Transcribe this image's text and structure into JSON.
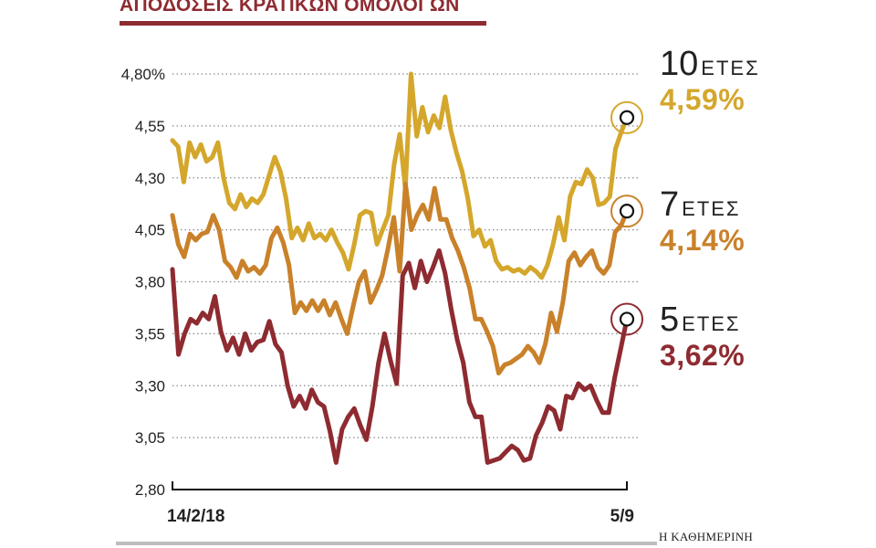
{
  "header": {
    "title": "ΑΠΟΔΟΣΕΙΣ ΚΡΑΤΙΚΩΝ ΟΜΟΛΟΓΩΝ"
  },
  "footer": {
    "source": "Η ΚΑΘΗΜΕΡΙΝΗ"
  },
  "legend": [
    {
      "num": "10",
      "word": "ΕΤΕΣ",
      "value": "4,59%",
      "color": "#d4a72c"
    },
    {
      "num": "7",
      "word": "ΕΤΕΣ",
      "value": "4,14%",
      "color": "#c9812a"
    },
    {
      "num": "5",
      "word": "ΕΤΕΣ",
      "value": "3,62%",
      "color": "#8e2b31"
    }
  ],
  "chart_data": {
    "type": "line",
    "title": "ΑΠΟΔΟΣΕΙΣ ΚΡΑΤΙΚΩΝ ΟΜΟΛΟΓΩΝ",
    "xlabel": "",
    "ylabel": "",
    "x_tick_labels": [
      "14/2/18",
      "5/9"
    ],
    "y_ticks": [
      2.8,
      3.05,
      3.3,
      3.55,
      3.8,
      4.05,
      4.3,
      4.55,
      4.8
    ],
    "y_tick_labels": [
      "2,80",
      "3,05",
      "3,30",
      "3,55",
      "3,80",
      "4,05",
      "4,30",
      "4,55",
      "4,80%"
    ],
    "ylim": [
      2.8,
      4.8
    ],
    "grid": "horizontal dotted",
    "series": [
      {
        "name": "10 ΕΤΕΣ",
        "color": "#d4a72c",
        "last": 4.59,
        "values": [
          4.48,
          4.45,
          4.28,
          4.47,
          4.4,
          4.46,
          4.38,
          4.4,
          4.47,
          4.3,
          4.18,
          4.15,
          4.22,
          4.16,
          4.2,
          4.18,
          4.22,
          4.31,
          4.4,
          4.33,
          4.2,
          4.01,
          4.06,
          4.0,
          4.08,
          4.01,
          4.03,
          4.0,
          4.05,
          3.99,
          3.94,
          3.86,
          3.98,
          4.12,
          4.14,
          4.13,
          3.98,
          4.05,
          4.12,
          4.36,
          4.51,
          4.25,
          4.8,
          4.5,
          4.64,
          4.52,
          4.6,
          4.54,
          4.69,
          4.53,
          4.42,
          4.33,
          4.2,
          4.02,
          4.05,
          3.97,
          4.0,
          3.9,
          3.86,
          3.87,
          3.85,
          3.86,
          3.84,
          3.87,
          3.85,
          3.82,
          3.88,
          3.98,
          4.11,
          4.0,
          4.21,
          4.28,
          4.27,
          4.34,
          4.3,
          4.17,
          4.18,
          4.21,
          4.44,
          4.52,
          4.59
        ]
      },
      {
        "name": "7 ΕΤΕΣ",
        "color": "#c9812a",
        "last": 4.14,
        "values": [
          4.12,
          3.98,
          3.92,
          4.03,
          4.0,
          4.03,
          4.04,
          4.12,
          4.05,
          3.9,
          3.87,
          3.82,
          3.9,
          3.85,
          3.87,
          3.84,
          3.88,
          4.01,
          4.06,
          3.99,
          3.88,
          3.65,
          3.7,
          3.66,
          3.71,
          3.66,
          3.71,
          3.64,
          3.7,
          3.62,
          3.55,
          3.68,
          3.8,
          3.85,
          3.7,
          3.76,
          3.83,
          3.96,
          4.11,
          3.85,
          4.27,
          4.05,
          4.12,
          4.17,
          4.1,
          4.25,
          4.1,
          4.1,
          4.01,
          3.95,
          3.87,
          3.77,
          3.62,
          3.62,
          3.56,
          3.49,
          3.36,
          3.4,
          3.41,
          3.43,
          3.45,
          3.49,
          3.46,
          3.41,
          3.5,
          3.65,
          3.56,
          3.7,
          3.9,
          3.94,
          3.88,
          3.92,
          3.95,
          3.87,
          3.84,
          3.88,
          4.04,
          4.07,
          4.14
        ]
      },
      {
        "name": "5 ΕΤΕΣ",
        "color": "#8e2b31",
        "last": 3.62,
        "values": [
          3.86,
          3.45,
          3.55,
          3.62,
          3.6,
          3.65,
          3.62,
          3.73,
          3.56,
          3.47,
          3.53,
          3.45,
          3.55,
          3.47,
          3.51,
          3.52,
          3.61,
          3.5,
          3.46,
          3.3,
          3.2,
          3.25,
          3.19,
          3.28,
          3.22,
          3.2,
          3.08,
          2.93,
          3.09,
          3.15,
          3.19,
          3.11,
          3.04,
          3.2,
          3.41,
          3.55,
          3.42,
          3.31,
          3.83,
          3.89,
          3.77,
          3.9,
          3.8,
          3.87,
          3.95,
          3.84,
          3.67,
          3.52,
          3.41,
          3.22,
          3.15,
          3.15,
          2.93,
          2.94,
          2.95,
          2.98,
          3.01,
          2.99,
          2.94,
          2.95,
          3.06,
          3.12,
          3.2,
          3.18,
          3.09,
          3.25,
          3.24,
          3.31,
          3.28,
          3.3,
          3.23,
          3.17,
          3.17,
          3.34,
          3.48,
          3.62
        ]
      }
    ]
  }
}
